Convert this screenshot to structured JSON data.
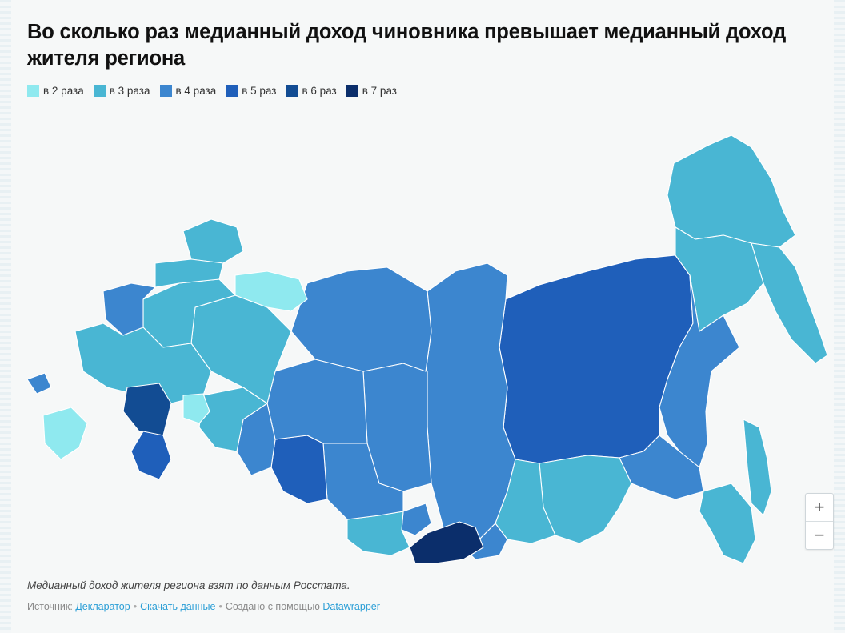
{
  "title": "Во сколько раз медианный доход чиновника превышает медианный доход жителя региона",
  "legend": [
    {
      "label": "в 2 раза",
      "color": "#8fe9ef"
    },
    {
      "label": "в 3 раза",
      "color": "#49b6d3"
    },
    {
      "label": "в 4 раза",
      "color": "#3c86cf"
    },
    {
      "label": "в 5 раз",
      "color": "#1f5fba"
    },
    {
      "label": "в 6 раз",
      "color": "#124c93"
    },
    {
      "label": "в 7 раз",
      "color": "#0b2e6b"
    }
  ],
  "zoom": {
    "in": "+",
    "out": "−"
  },
  "notes": "Медианный доход жителя региона взят по данным Росстата.",
  "footer": {
    "source_prefix": "Источник: ",
    "source_link": "Декларатор",
    "download_link": "Скачать данные",
    "created_prefix": "Создано с помощью ",
    "created_link": "Datawrapper",
    "separator": "•"
  },
  "map_data": {
    "regions": [
      {
        "name": "Якутия",
        "level": 5
      },
      {
        "name": "Красноярский край",
        "level": 4
      },
      {
        "name": "Чукотка",
        "level": 3
      },
      {
        "name": "Камчатка",
        "level": 3
      },
      {
        "name": "Магадан",
        "level": 3
      },
      {
        "name": "Хабаровский край",
        "level": 4
      },
      {
        "name": "Амурская область",
        "level": 4
      },
      {
        "name": "Приморье",
        "level": 3
      },
      {
        "name": "Сахалин",
        "level": 3
      },
      {
        "name": "Забайкалье",
        "level": 3
      },
      {
        "name": "Бурятия",
        "level": 3
      },
      {
        "name": "Иркутская область",
        "level": 4
      },
      {
        "name": "Тыва",
        "level": 7
      },
      {
        "name": "Хакасия",
        "level": 4
      },
      {
        "name": "Алтай",
        "level": 3
      },
      {
        "name": "Томская область",
        "level": 4
      },
      {
        "name": "Новосибирская область",
        "level": 4
      },
      {
        "name": "Омская область",
        "level": 5
      },
      {
        "name": "ХМАО",
        "level": 4
      },
      {
        "name": "ЯНАО",
        "level": 4
      },
      {
        "name": "Тюменская область",
        "level": 4
      },
      {
        "name": "Свердловская область",
        "level": 3
      },
      {
        "name": "Коми",
        "level": 3
      },
      {
        "name": "Ненецкий АО",
        "level": 2
      },
      {
        "name": "Архангельская область",
        "level": 3
      },
      {
        "name": "Мурманская область",
        "level": 3
      },
      {
        "name": "Карелия",
        "level": 3
      },
      {
        "name": "Ленинградская область",
        "level": 4
      },
      {
        "name": "Москва",
        "level": 2
      },
      {
        "name": "Московская область",
        "level": 3
      },
      {
        "name": "Саратов",
        "level": 6
      },
      {
        "name": "Волгоград",
        "level": 5
      },
      {
        "name": "Краснодар",
        "level": 2
      },
      {
        "name": "Калининград",
        "level": 4
      },
      {
        "name": "Татарстан",
        "level": 2
      }
    ]
  }
}
